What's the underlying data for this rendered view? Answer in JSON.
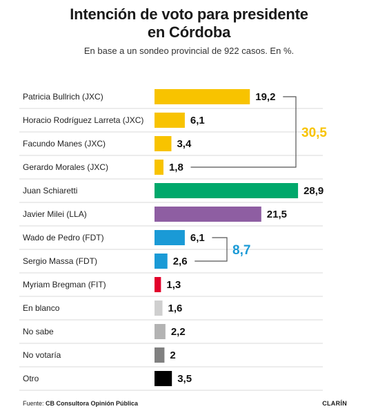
{
  "title_line1": "Intención de voto para presidente",
  "title_line2": "en Córdoba",
  "subtitle": "En base a un sondeo provincial de 922 casos. En %.",
  "footer": {
    "source_label": "Fuente:",
    "source_name": "CB Consultora Opinión Pública",
    "brand": "CLARÍN"
  },
  "chart_data": {
    "type": "bar",
    "orientation": "horizontal",
    "categories": [
      "Patricia Bullrich (JXC)",
      "Horacio Rodríguez Larreta (JXC)",
      "Facundo Manes (JXC)",
      "Gerardo Morales (JXC)",
      "Juan Schiaretti",
      "Javier Milei (LLA)",
      "Wado de Pedro (FDT)",
      "Sergio Massa (FDT)",
      "Myriam Bregman (FIT)",
      "En blanco",
      "No sabe",
      "No votaría",
      "Otro"
    ],
    "values": [
      19.2,
      6.1,
      3.4,
      1.8,
      28.9,
      21.5,
      6.1,
      2.6,
      1.3,
      1.6,
      2.2,
      2,
      3.5
    ],
    "value_labels": [
      "19,2",
      "6,1",
      "3,4",
      "1,8",
      "28,9",
      "21,5",
      "6,1",
      "2,6",
      "1,3",
      "1,6",
      "2,2",
      "2",
      "3,5"
    ],
    "colors": [
      "#f8c300",
      "#f8c300",
      "#f8c300",
      "#f8c300",
      "#00a86b",
      "#8e5ea2",
      "#1a9ad6",
      "#1a9ad6",
      "#e2002b",
      "#cfcfcf",
      "#b3b3b3",
      "#808080",
      "#000000"
    ],
    "groups": [
      {
        "rows": [
          0,
          3
        ],
        "total": "30,5",
        "color": "#f8c300"
      },
      {
        "rows": [
          6,
          7
        ],
        "total": "8,7",
        "color": "#1a9ad6"
      }
    ]
  }
}
